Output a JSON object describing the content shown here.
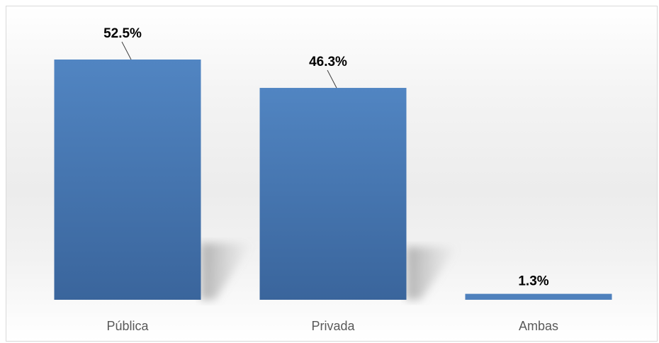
{
  "chart_data": {
    "type": "bar",
    "categories": [
      "Pública",
      "Privada",
      "Ambas"
    ],
    "values": [
      52.5,
      46.3,
      1.3
    ],
    "value_labels": [
      "52.5%",
      "46.3%",
      "1.3%"
    ],
    "title": "",
    "xlabel": "",
    "ylabel": "",
    "ylim": [
      0,
      52.5
    ],
    "grid": false,
    "legend": "none",
    "colors": {
      "bar": "#4f81bd",
      "bar_dark": "#3c669c",
      "leader_line": "#404040",
      "category_text": "#595959",
      "value_text": "#000000"
    }
  }
}
